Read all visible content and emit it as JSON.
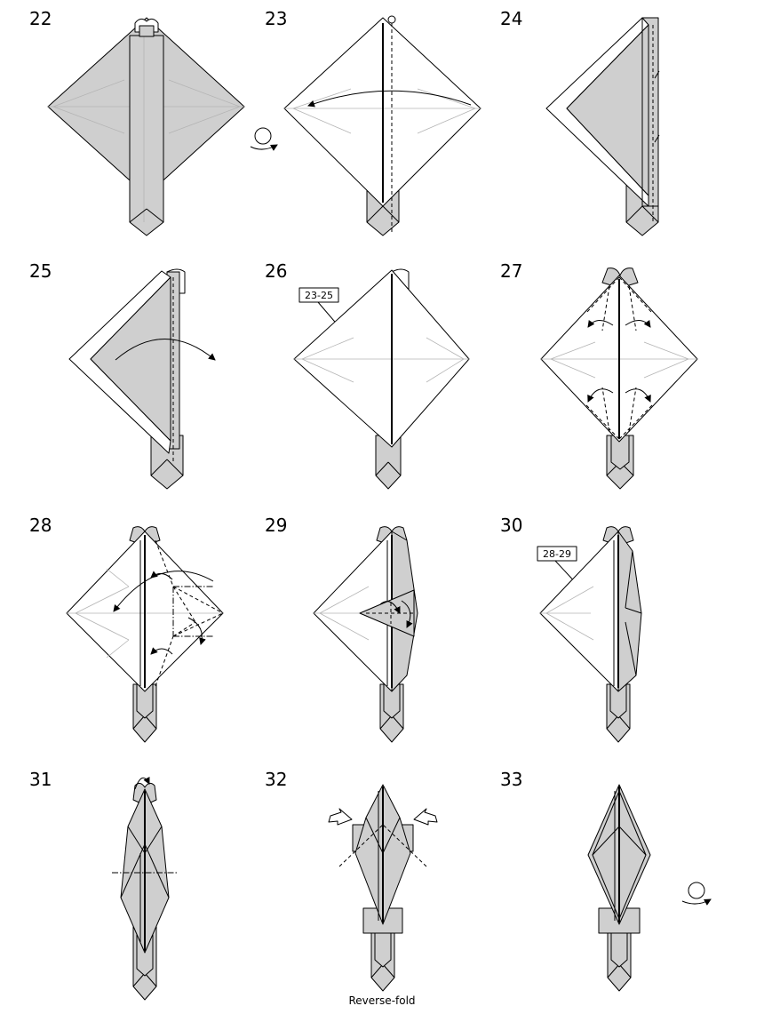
{
  "steps": [
    {
      "number": "22"
    },
    {
      "number": "23"
    },
    {
      "number": "24"
    },
    {
      "number": "25"
    },
    {
      "number": "26",
      "reference": "23-25"
    },
    {
      "number": "27"
    },
    {
      "number": "28"
    },
    {
      "number": "29"
    },
    {
      "number": "30",
      "reference": "28-29"
    },
    {
      "number": "31"
    },
    {
      "number": "32",
      "caption": "Reverse-fold"
    },
    {
      "number": "33"
    }
  ],
  "colors": {
    "paper_white": "#ffffff",
    "paper_colored": "#cfcfcf",
    "line": "#000000",
    "crease": "#b4b4b4"
  }
}
